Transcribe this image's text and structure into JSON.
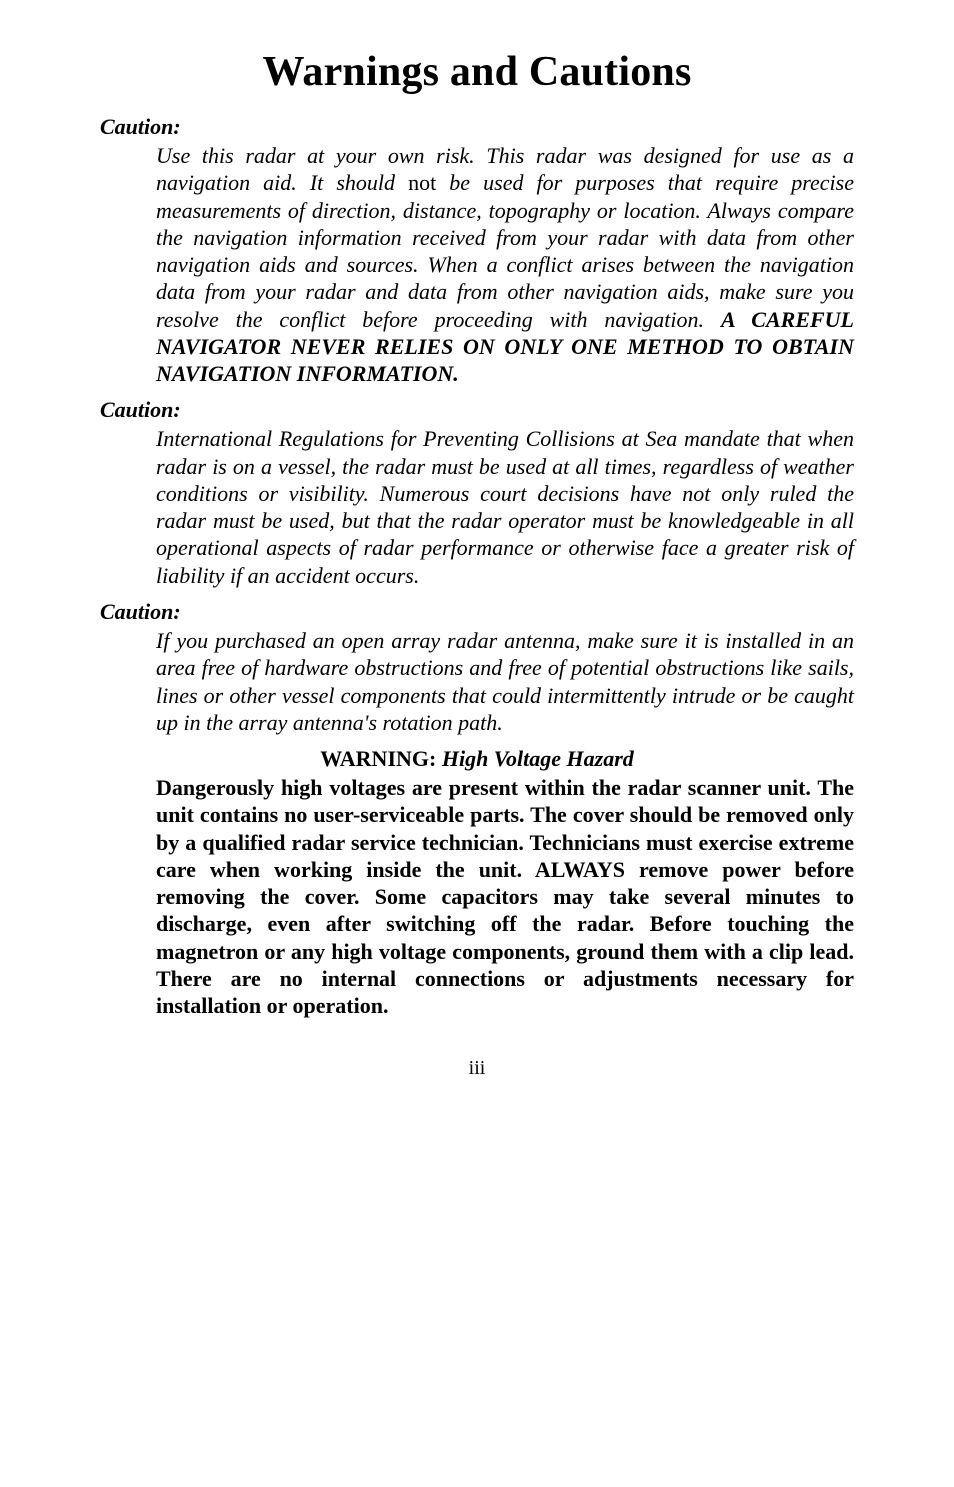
{
  "title": "Warnings and Cautions",
  "sections": [
    {
      "label": "Caution:",
      "runs": [
        {
          "t": "Use this radar at your own risk. This radar was designed for use as a navigation aid. It should ",
          "s": "ital"
        },
        {
          "t": "not",
          "s": "plain"
        },
        {
          "t": " be used for purposes that require precise measurements of direction, distance, topography or location. Always compare the navigation information received from your radar with data from other navigation aids and sources. When a conflict arises between the navigation data from your radar and data from other navigation aids, make sure you resolve the conflict before proceeding with navigation. ",
          "s": "ital"
        },
        {
          "t": "A CAREFUL NAVIGATOR NEVER RELIES ON ONLY ONE METHOD TO OBTAIN NAVIGATION INFORMATION.",
          "s": "boldital"
        }
      ]
    },
    {
      "label": "Caution:",
      "runs": [
        {
          "t": "International Regulations for Preventing Collisions at Sea mandate that when radar is on a vessel, the radar must be used at all times, regardless of weather conditions or visibility. Numerous court decisions have not only ruled the radar must be used, but that the radar operator must be knowledgeable in all operational aspects of radar performance or otherwise face a greater risk of liability if an accident occurs.",
          "s": "ital"
        }
      ]
    },
    {
      "label": "Caution:",
      "runs": [
        {
          "t": "If you purchased an open array radar antenna, make sure it is installed in an area free of hardware obstructions and free of potential obstructions like sails, lines or other vessel components that could intermittently intrude or be caught up in the array antenna's rotation path.",
          "s": "ital"
        }
      ]
    }
  ],
  "warning": {
    "head_bold": "WARNING:",
    "head_ital": " High Voltage Hazard",
    "body": "Dangerously high voltages are present within the radar scanner unit. The unit contains no user-serviceable parts. The cover should be removed only by a qualified radar service technician. Technicians must exercise extreme care when working inside the unit. ALWAYS remove power before removing the cover. Some capacitors may take several minutes to discharge, even after switching off the radar. Before touching the magnetron or any high voltage components, ground them with a clip lead. There are no internal connections or adjustments necessary for installation or operation."
  },
  "page_number": "iii"
}
